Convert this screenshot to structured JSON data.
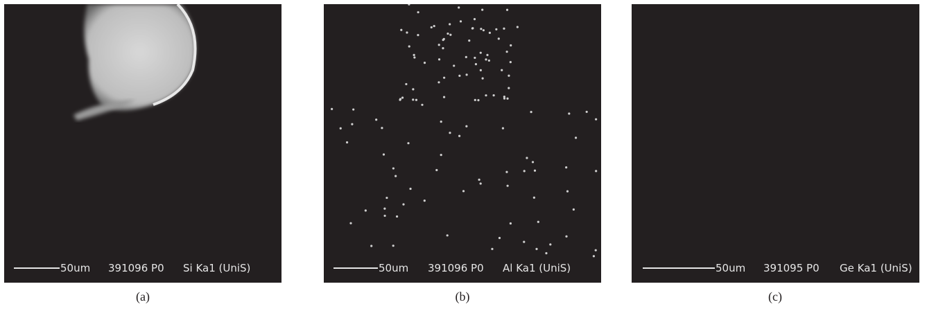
{
  "panels": [
    {
      "scale": "50um",
      "id": "391096 P0",
      "signal": "Si Ka1 (UniS)",
      "caption": "(a)"
    },
    {
      "scale": "50um",
      "id": "391096 P0",
      "signal": "Al Ka1 (UniS)",
      "caption": "(b)"
    },
    {
      "scale": "50um",
      "id": "391095 P0",
      "signal": "Ge Ka1 (UniS)",
      "caption": "(c)"
    }
  ]
}
